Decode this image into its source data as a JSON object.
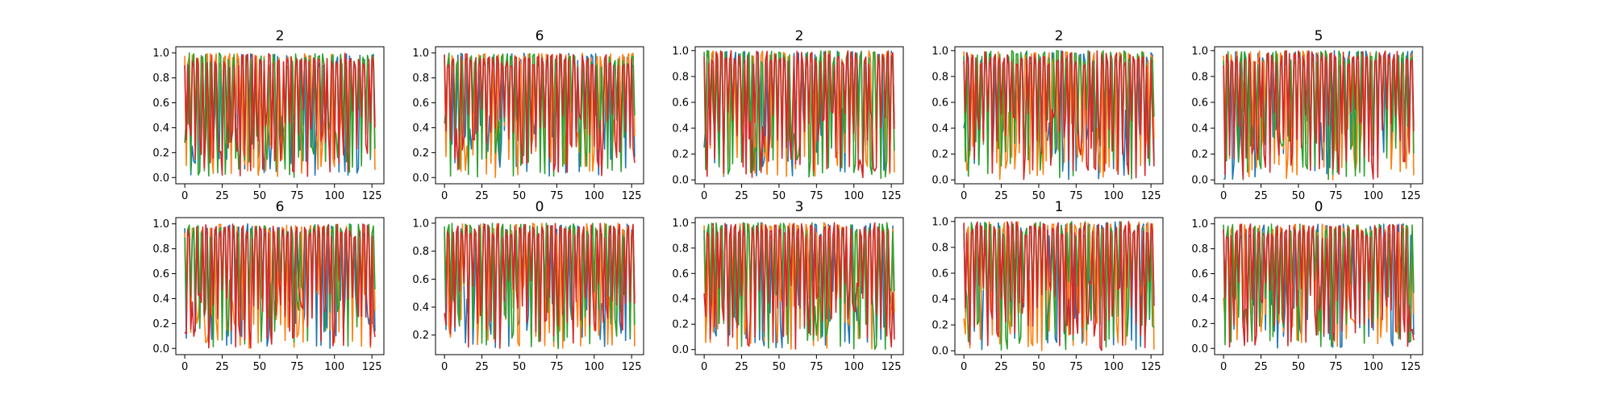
{
  "chart_data": [
    {
      "type": "line",
      "title": "2",
      "xlabel": "",
      "ylabel": "",
      "xlim": [
        -6,
        133
      ],
      "ylim": [
        -0.05,
        1.05
      ],
      "xticks": [
        "0",
        "25",
        "50",
        "75",
        "100",
        "125"
      ],
      "yticks": [
        "0.0",
        "0.2",
        "0.4",
        "0.6",
        "0.8",
        "1.0"
      ],
      "n_points": 128,
      "series_colors": [
        "#1f77b4",
        "#ff7f0e",
        "#2ca02c",
        "#d62728"
      ],
      "value_range": [
        0.0,
        1.0
      ]
    },
    {
      "type": "line",
      "title": "6",
      "xlabel": "",
      "ylabel": "",
      "xlim": [
        -6,
        133
      ],
      "ylim": [
        -0.05,
        1.05
      ],
      "xticks": [
        "0",
        "25",
        "50",
        "75",
        "100",
        "125"
      ],
      "yticks": [
        "0.0",
        "0.2",
        "0.4",
        "0.6",
        "0.8",
        "1.0"
      ],
      "n_points": 128,
      "series_colors": [
        "#1f77b4",
        "#ff7f0e",
        "#2ca02c",
        "#d62728"
      ],
      "value_range": [
        0.0,
        1.0
      ]
    },
    {
      "type": "line",
      "title": "2",
      "xlabel": "",
      "ylabel": "",
      "xlim": [
        -6,
        133
      ],
      "ylim": [
        -0.03,
        1.03
      ],
      "xticks": [
        "0",
        "25",
        "50",
        "75",
        "100",
        "125"
      ],
      "yticks": [
        "0.0",
        "0.2",
        "0.4",
        "0.6",
        "0.8",
        "1.0"
      ],
      "n_points": 128,
      "series_colors": [
        "#1f77b4",
        "#ff7f0e",
        "#2ca02c",
        "#d62728"
      ],
      "value_range": [
        0.01,
        1.0
      ]
    },
    {
      "type": "line",
      "title": "2",
      "xlabel": "",
      "ylabel": "",
      "xlim": [
        -6,
        133
      ],
      "ylim": [
        -0.03,
        1.03
      ],
      "xticks": [
        "0",
        "25",
        "50",
        "75",
        "100",
        "125"
      ],
      "yticks": [
        "0.0",
        "0.2",
        "0.4",
        "0.6",
        "0.8",
        "1.0"
      ],
      "n_points": 128,
      "series_colors": [
        "#1f77b4",
        "#ff7f0e",
        "#2ca02c",
        "#d62728"
      ],
      "value_range": [
        0.0,
        1.0
      ]
    },
    {
      "type": "line",
      "title": "5",
      "xlabel": "",
      "ylabel": "",
      "xlim": [
        -6,
        133
      ],
      "ylim": [
        -0.03,
        1.03
      ],
      "xticks": [
        "0",
        "25",
        "50",
        "75",
        "100",
        "125"
      ],
      "yticks": [
        "0.0",
        "0.2",
        "0.4",
        "0.6",
        "0.8",
        "1.0"
      ],
      "n_points": 128,
      "series_colors": [
        "#1f77b4",
        "#ff7f0e",
        "#2ca02c",
        "#d62728"
      ],
      "value_range": [
        0.0,
        1.0
      ]
    },
    {
      "type": "line",
      "title": "6",
      "xlabel": "",
      "ylabel": "",
      "xlim": [
        -6,
        133
      ],
      "ylim": [
        -0.05,
        1.05
      ],
      "xticks": [
        "0",
        "25",
        "50",
        "75",
        "100",
        "125"
      ],
      "yticks": [
        "0.0",
        "0.2",
        "0.4",
        "0.6",
        "0.8",
        "1.0"
      ],
      "n_points": 128,
      "series_colors": [
        "#1f77b4",
        "#ff7f0e",
        "#2ca02c",
        "#d62728"
      ],
      "value_range": [
        0.0,
        1.0
      ]
    },
    {
      "type": "line",
      "title": "0",
      "xlabel": "",
      "ylabel": "",
      "xlim": [
        -6,
        133
      ],
      "ylim": [
        0.06,
        1.04
      ],
      "xticks": [
        "0",
        "25",
        "50",
        "75",
        "100",
        "125"
      ],
      "yticks": [
        "0.2",
        "0.4",
        "0.6",
        "0.8",
        "1.0"
      ],
      "n_points": 128,
      "series_colors": [
        "#1f77b4",
        "#ff7f0e",
        "#2ca02c",
        "#d62728"
      ],
      "value_range": [
        0.1,
        1.0
      ]
    },
    {
      "type": "line",
      "title": "3",
      "xlabel": "",
      "ylabel": "",
      "xlim": [
        -6,
        133
      ],
      "ylim": [
        -0.04,
        1.04
      ],
      "xticks": [
        "0",
        "25",
        "50",
        "75",
        "100",
        "125"
      ],
      "yticks": [
        "0.0",
        "0.2",
        "0.4",
        "0.6",
        "0.8",
        "1.0"
      ],
      "n_points": 128,
      "series_colors": [
        "#1f77b4",
        "#ff7f0e",
        "#2ca02c",
        "#d62728"
      ],
      "value_range": [
        0.0,
        1.0
      ]
    },
    {
      "type": "line",
      "title": "1",
      "xlabel": "",
      "ylabel": "",
      "xlim": [
        -6,
        133
      ],
      "ylim": [
        -0.03,
        1.03
      ],
      "xticks": [
        "0",
        "25",
        "50",
        "75",
        "100",
        "125"
      ],
      "yticks": [
        "0.0",
        "0.2",
        "0.4",
        "0.6",
        "0.8",
        "1.0"
      ],
      "n_points": 128,
      "series_colors": [
        "#1f77b4",
        "#ff7f0e",
        "#2ca02c",
        "#d62728"
      ],
      "value_range": [
        0.0,
        1.0
      ]
    },
    {
      "type": "line",
      "title": "0",
      "xlabel": "",
      "ylabel": "",
      "xlim": [
        -6,
        133
      ],
      "ylim": [
        -0.05,
        1.05
      ],
      "xticks": [
        "0",
        "25",
        "50",
        "75",
        "100",
        "125"
      ],
      "yticks": [
        "0.0",
        "0.2",
        "0.4",
        "0.6",
        "0.8",
        "1.0"
      ],
      "n_points": 128,
      "series_colors": [
        "#1f77b4",
        "#ff7f0e",
        "#2ca02c",
        "#d62728"
      ],
      "value_range": [
        0.0,
        1.0
      ]
    }
  ]
}
